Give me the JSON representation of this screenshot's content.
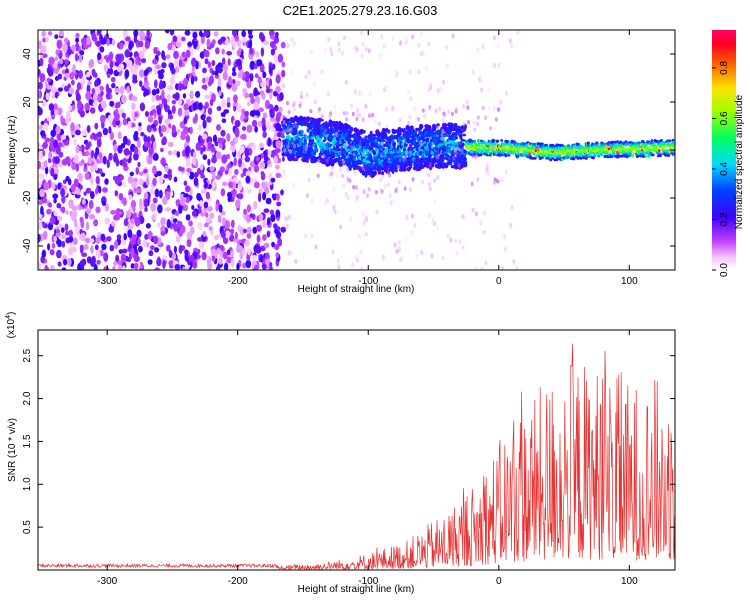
{
  "title": "C2E1.2025.279.23.16.G03",
  "chart_data": [
    {
      "type": "heatmap",
      "name": "spectrogram",
      "xlabel": "Height of straight line (km)",
      "ylabel": "Frequency (Hz)",
      "xlim": [
        -353,
        135
      ],
      "ylim": [
        -50,
        50
      ],
      "xticks": [
        -300,
        -200,
        -100,
        0,
        100
      ],
      "xtick_labels": [
        "-300",
        "-200",
        "-100",
        "0",
        "100"
      ],
      "yticks": [
        -40,
        -20,
        0,
        20,
        40
      ],
      "ytick_labels": [
        "-40",
        "-20",
        "0",
        "20",
        "40"
      ],
      "noise_region_km": [
        -353,
        -165
      ],
      "signal_region_km": [
        -165,
        135
      ],
      "signal_center_hz": [
        {
          "x": -160,
          "f": 5
        },
        {
          "x": -140,
          "f": 4
        },
        {
          "x": -120,
          "f": 2
        },
        {
          "x": -100,
          "f": -2
        },
        {
          "x": -80,
          "f": 0
        },
        {
          "x": -60,
          "f": 1
        },
        {
          "x": -40,
          "f": 2
        },
        {
          "x": -20,
          "f": 1
        },
        {
          "x": 0,
          "f": 1
        },
        {
          "x": 40,
          "f": -1
        },
        {
          "x": 80,
          "f": 0
        },
        {
          "x": 135,
          "f": 1
        }
      ],
      "colorbar": {
        "label": "Normalized spectral amplitude",
        "range": [
          0,
          0.95
        ],
        "ticks": [
          0.0,
          0.2,
          0.4,
          0.6,
          0.8
        ],
        "tick_labels": [
          "0.0",
          "0.2",
          "0.4",
          "0.6",
          "0.8"
        ],
        "colors": [
          "#ffffff",
          "#ff00ff",
          "#7000ff",
          "#0000ff",
          "#00ffff",
          "#00ff00",
          "#ffff00",
          "#ff8800",
          "#ff0000",
          "#ff0066"
        ]
      }
    },
    {
      "type": "line",
      "name": "snr",
      "xlabel": "Height of straight line (km)",
      "ylabel": "SNR (10 * v/v)",
      "exponent_label": "(x10",
      "exponent_power": "4",
      "exponent_close": ")",
      "xlim": [
        -353,
        135
      ],
      "ylim": [
        0,
        2.8
      ],
      "xticks": [
        -300,
        -200,
        -100,
        0,
        100
      ],
      "xtick_labels": [
        "-300",
        "-200",
        "-100",
        "0",
        "100"
      ],
      "yticks": [
        0.5,
        1.0,
        1.5,
        2.0,
        2.5
      ],
      "ytick_labels": [
        "0.5",
        "1.0",
        "1.5",
        "2.0",
        "2.5"
      ],
      "color": "#e83030",
      "envelope": [
        {
          "x": -353,
          "y": 0.05
        },
        {
          "x": -170,
          "y": 0.05
        },
        {
          "x": -130,
          "y": 0.1
        },
        {
          "x": -100,
          "y": 0.2
        },
        {
          "x": -70,
          "y": 0.35
        },
        {
          "x": -40,
          "y": 0.7
        },
        {
          "x": -20,
          "y": 1.0
        },
        {
          "x": 0,
          "y": 1.5
        },
        {
          "x": 10,
          "y": 1.8
        },
        {
          "x": 30,
          "y": 2.1
        },
        {
          "x": 50,
          "y": 2.5
        },
        {
          "x": 80,
          "y": 2.4
        },
        {
          "x": 100,
          "y": 2.2
        },
        {
          "x": 135,
          "y": 2.3
        }
      ]
    }
  ]
}
